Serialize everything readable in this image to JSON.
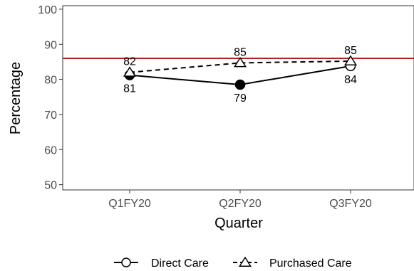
{
  "chart_data": {
    "type": "line",
    "categories": [
      "Q1FY20",
      "Q2FY20",
      "Q3FY20"
    ],
    "xlabel": "Quarter",
    "ylabel": "Percentage",
    "ylim": [
      48.5,
      101
    ],
    "yticks": [
      50,
      60,
      70,
      80,
      90,
      100
    ],
    "grid": false,
    "legend_position": "bottom",
    "reference_line": {
      "value": 86,
      "color": "#b22222"
    },
    "series": [
      {
        "name": "Direct Care",
        "values": [
          81,
          79,
          84
        ],
        "plotted": [
          81.2,
          78.5,
          83.8
        ],
        "line_style": "solid",
        "marker": "circle",
        "color": "#000000"
      },
      {
        "name": "Purchased Care",
        "values": [
          82,
          85,
          85
        ],
        "plotted": [
          82.0,
          84.7,
          85.2
        ],
        "line_style": "dashed",
        "marker": "triangle",
        "color": "#000000"
      }
    ]
  }
}
